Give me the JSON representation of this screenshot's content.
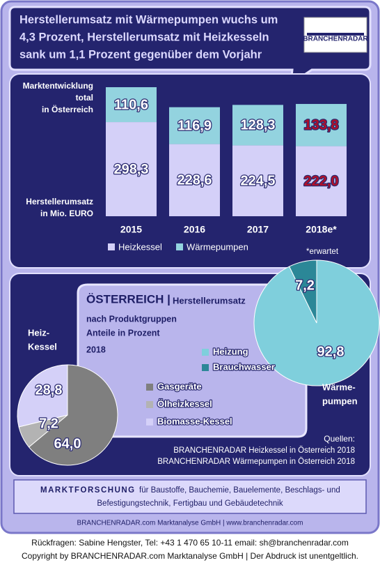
{
  "header": {
    "title": [
      "Herstellerumsatz mit Wärmepumpen wuchs um",
      "4,3 Prozent, Herstellerumsatz mit Heizkesseln",
      "sank um 1,1 Prozent gegenüber dem Vorjahr"
    ],
    "logo": "BRANCHENRADAR"
  },
  "chart_data": [
    {
      "type": "bar",
      "stacked": true,
      "title": [
        "Marktentwicklung",
        "total",
        "in Österreich"
      ],
      "ylabel": [
        "Herstellerumsatz",
        "in Mio. EURO"
      ],
      "categories": [
        "2015",
        "2016",
        "2017",
        "2018e*"
      ],
      "series": [
        {
          "name": "Heizkessel",
          "color": "#d4d0f8",
          "values": [
            298.3,
            228.6,
            224.5,
            222.0
          ],
          "value_labels": [
            "298,3",
            "228,6",
            "224,5",
            "222,0"
          ],
          "label_colors": [
            "#ffffff",
            "#ffffff",
            "#ffffff",
            "#b0102a"
          ]
        },
        {
          "name": "Wärmepumpen",
          "color": "#93d3df",
          "values": [
            110.6,
            116.9,
            128.3,
            133.8
          ],
          "value_labels": [
            "110,6",
            "116,9",
            "128,3",
            "133,8"
          ],
          "label_colors": [
            "#ffffff",
            "#ffffff",
            "#ffffff",
            "#b0102a"
          ]
        }
      ],
      "note": "*erwartet"
    },
    {
      "type": "pie",
      "title": [
        "Heiz-",
        "Kessel"
      ],
      "categories": [
        "Gasgeräte",
        "Ölheizkessel",
        "Biomasse-Kessel"
      ],
      "values": [
        64.0,
        7.2,
        28.8
      ],
      "value_labels": [
        "64,0",
        "7,2",
        "28,8"
      ],
      "colors": [
        "#7f7f7f",
        "#b3b3b3",
        "#d4d0f8"
      ]
    },
    {
      "type": "pie",
      "title": [
        "Wärme-",
        "pumpen"
      ],
      "categories": [
        "Heizung",
        "Brauchwasser"
      ],
      "values": [
        92.8,
        7.2
      ],
      "value_labels": [
        "92,8",
        "7,2"
      ],
      "colors": [
        "#7fcfdc",
        "#2b8797"
      ]
    }
  ],
  "panel": {
    "heading": "ÖSTERREICH |",
    "heading_sub": "Herstellerumsatz",
    "lines": [
      "nach Produktgruppen",
      "Anteile in Prozent"
    ],
    "year": "2018"
  },
  "sources": {
    "label": "Quellen:",
    "items": [
      "BRANCHENRADAR Heizkessel in Österreich 2018",
      "BRANCHENRADAR Wärmepumpen in Österreich 2018"
    ]
  },
  "footer": {
    "lead": "MARKTFORSCHUNG",
    "text": [
      "für Baustoffe, Bauchemie, Bauelemente, Beschlags- und",
      "Befestigungstechnik, Fertigbau und Gebäudetechnik"
    ],
    "company": "BRANCHENRADAR.com Marktanalyse GmbH | www.branchenradar.com",
    "contact": "Rückfragen: Sabine Hengster, Tel: +43 1 470 65 10-11 email: sh@branchenradar.com",
    "copyright": "Copyright by BRANCHENRADAR.com  Marktanalyse GmbH | Der Abdruck ist unentgeltlich."
  }
}
